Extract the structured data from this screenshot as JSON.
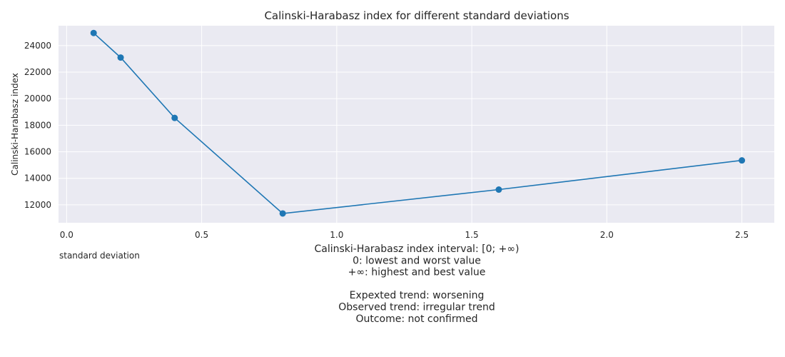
{
  "chart_data": {
    "type": "line",
    "title": "Calinski-Harabasz index for different standard deviations",
    "xlabel": "standard deviation",
    "ylabel": "Calinski-Harabasz index",
    "x": [
      0.1,
      0.2,
      0.4,
      0.8,
      1.6,
      2.5
    ],
    "series": [
      {
        "values": [
          24950,
          23100,
          18550,
          11350,
          13150,
          15350
        ],
        "color": "#1f77b4"
      }
    ],
    "xlim": [
      -0.03,
      2.62
    ],
    "ylim": [
      10650,
      25500
    ],
    "xticks": [
      0.0,
      0.5,
      1.0,
      1.5,
      2.0,
      2.5
    ],
    "xtick_labels": [
      "0.0",
      "0.5",
      "1.0",
      "1.5",
      "2.0",
      "2.5"
    ],
    "yticks": [
      12000,
      14000,
      16000,
      18000,
      20000,
      22000,
      24000
    ],
    "ytick_labels": [
      "12000",
      "14000",
      "16000",
      "18000",
      "20000",
      "22000",
      "24000"
    ],
    "grid": true,
    "background": "#eaeaf2",
    "annotation_lines": [
      "Calinski-Harabasz index interval: [0; +∞)",
      "0: lowest and worst value",
      "+∞: highest and best value",
      "",
      "Expexted trend: worsening",
      "Observed trend: irregular trend",
      "Outcome: not confirmed"
    ]
  }
}
